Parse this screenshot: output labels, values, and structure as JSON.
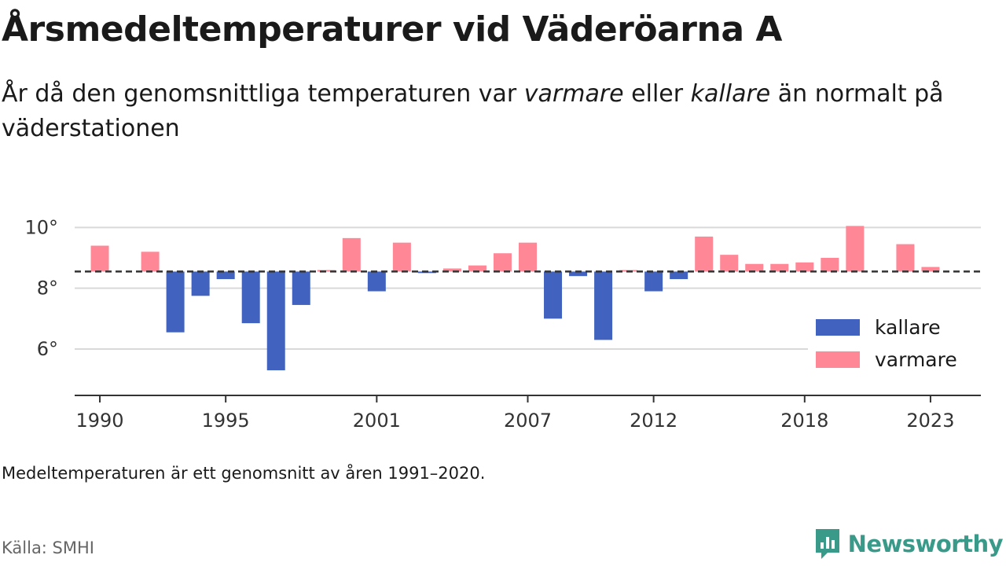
{
  "header": {
    "title": "Årsmedeltemperaturer vid Väderöarna A",
    "subtitle_part1": "År då den genomsnittliga temperaturen var ",
    "subtitle_em1": "varmare",
    "subtitle_part2": " eller ",
    "subtitle_em2": "kallare",
    "subtitle_part3": " än normalt på väderstationen"
  },
  "footer": {
    "note": "Medeltemperaturen är ett genomsnitt av åren 1991–2020.",
    "source": "Källa: SMHI",
    "brand": "Newsworthy"
  },
  "colors": {
    "warmer": "#ff8796",
    "colder": "#4163bf",
    "brand": "#3a9a8a"
  },
  "chart_data": {
    "type": "bar",
    "baseline": 8.55,
    "ylim": [
      4.5,
      10.5
    ],
    "yticks": [
      6,
      8,
      10
    ],
    "ytick_labels": [
      "6°",
      "8°",
      "10°"
    ],
    "xticks": [
      1990,
      1995,
      2001,
      2007,
      2012,
      2018,
      2023
    ],
    "xtick_labels": [
      "1990",
      "1995",
      "2001",
      "2007",
      "2012",
      "2018",
      "2023"
    ],
    "x_range": [
      1989,
      2025
    ],
    "legend": {
      "position": "bottom-right",
      "entries": [
        {
          "label": "kallare",
          "key": "colder"
        },
        {
          "label": "varmare",
          "key": "warmer"
        }
      ]
    },
    "years": [
      1990,
      1992,
      1993,
      1994,
      1995,
      1996,
      1997,
      1998,
      1999,
      2000,
      2001,
      2002,
      2003,
      2004,
      2005,
      2006,
      2007,
      2008,
      2009,
      2010,
      2011,
      2012,
      2013,
      2014,
      2015,
      2016,
      2017,
      2018,
      2019,
      2020,
      2022,
      2023
    ],
    "values": [
      9.4,
      9.2,
      6.55,
      7.75,
      8.3,
      6.85,
      5.3,
      7.45,
      8.6,
      9.65,
      7.9,
      9.5,
      8.5,
      8.65,
      8.75,
      9.15,
      9.5,
      7.0,
      8.4,
      6.3,
      8.6,
      7.9,
      8.3,
      9.7,
      9.1,
      8.8,
      8.8,
      8.85,
      9.0,
      10.05,
      9.45,
      8.7
    ],
    "grid": true
  }
}
